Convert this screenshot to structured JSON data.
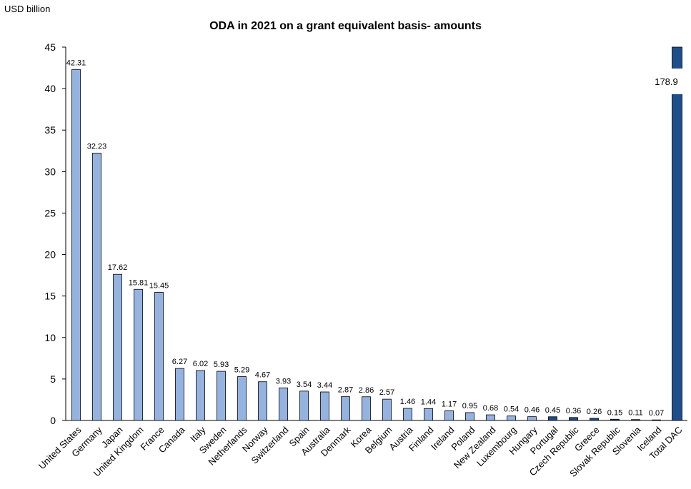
{
  "chart_data": {
    "type": "bar",
    "title": "ODA in 2021 on a grant equivalent basis- amounts",
    "ylabel": "USD billion",
    "xlabel": "",
    "ylim": [
      0,
      45
    ],
    "yticks": [
      0,
      5,
      10,
      15,
      20,
      25,
      30,
      35,
      40,
      45
    ],
    "grid": false,
    "categories": [
      "United States",
      "Germany",
      "Japan",
      "United Kingdom",
      "France",
      "Canada",
      "Italy",
      "Sweden",
      "Netherlands",
      "Norway",
      "Switzerland",
      "Spain",
      "Australia",
      "Denmark",
      "Korea",
      "Belgium",
      "Austria",
      "Finland",
      "Ireland",
      "Poland",
      "New Zealand",
      "Luxembourg",
      "Hungary",
      "Portugal",
      "Czech Republic",
      "Greece",
      "Slovak Republic",
      "Slovenia",
      "Iceland",
      "Total DAC"
    ],
    "values": [
      42.31,
      32.23,
      17.62,
      15.81,
      15.45,
      6.27,
      6.02,
      5.93,
      5.29,
      4.67,
      3.93,
      3.54,
      3.44,
      2.87,
      2.86,
      2.57,
      1.46,
      1.44,
      1.17,
      0.95,
      0.68,
      0.54,
      0.46,
      0.45,
      0.36,
      0.26,
      0.15,
      0.11,
      0.07,
      178.9
    ],
    "data_labels": [
      "42.31",
      "32.23",
      "17.62",
      "15.81",
      "15.45",
      "6.27",
      "6.02",
      "5.93",
      "5.29",
      "4.67",
      "3.93",
      "3.54",
      "3.44",
      "2.87",
      "2.86",
      "2.57",
      "1.46",
      "1.44",
      "1.17",
      "0.95",
      "0.68",
      "0.54",
      "0.46",
      "0.45",
      "0.36",
      "0.26",
      "0.15",
      "0.11",
      "0.07",
      "178.9"
    ],
    "colors": {
      "default_bar": "#95B3E0",
      "highlight_bar": "#1F4E8C",
      "total_bar": "#1F4E8C",
      "bar_edge": "#000000"
    },
    "highlighted_categories": [
      "Portugal",
      "Czech Republic",
      "Greece",
      "Slovak Republic",
      "Slovenia",
      "Iceland"
    ],
    "total_bar_broken": true
  }
}
